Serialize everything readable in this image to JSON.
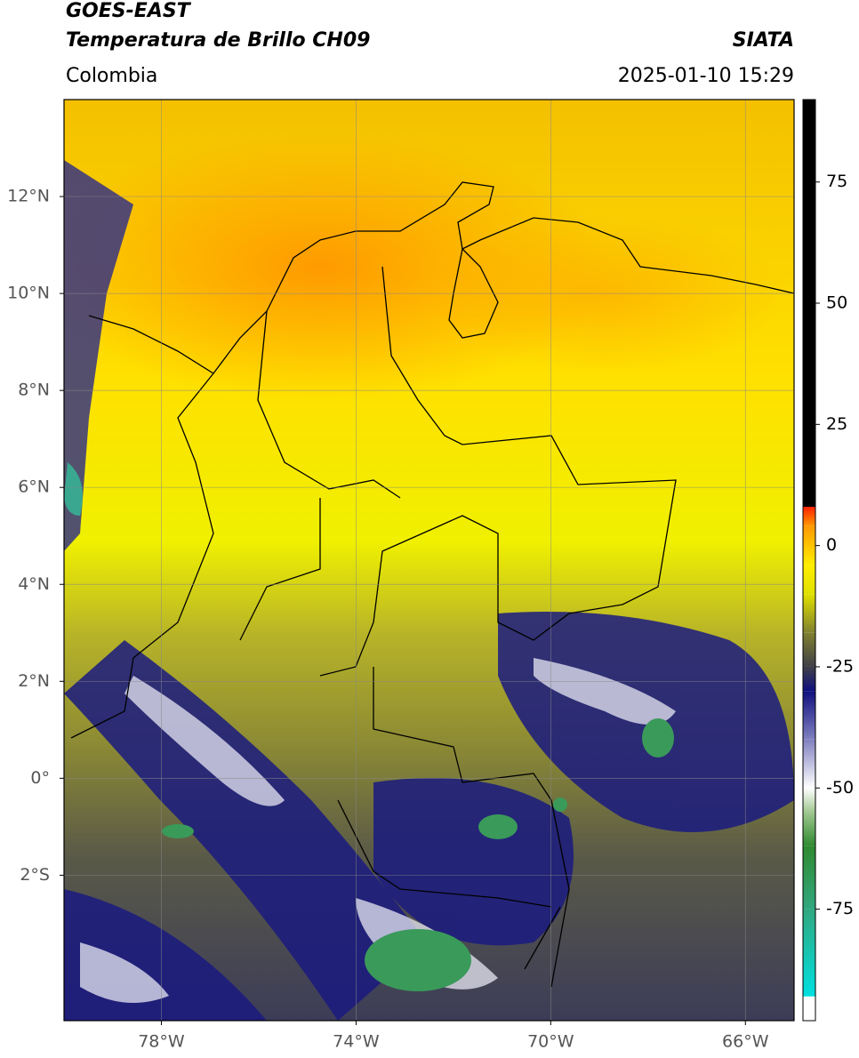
{
  "header": {
    "title": "GOES-EAST",
    "subtitle": "Temperatura de Brillo CH09",
    "source": "SIATA",
    "region": "Colombia",
    "datetime": "2025-01-10 15:29"
  },
  "map": {
    "xlim": [
      -80,
      -65
    ],
    "ylim": [
      -5,
      14
    ],
    "xticks": [
      {
        "value": -78,
        "label": "78°W"
      },
      {
        "value": -74,
        "label": "74°W"
      },
      {
        "value": -70,
        "label": "70°W"
      },
      {
        "value": -66,
        "label": "66°W"
      }
    ],
    "yticks": [
      {
        "value": 12,
        "label": "12°N"
      },
      {
        "value": 10,
        "label": "10°N"
      },
      {
        "value": 8,
        "label": "8°N"
      },
      {
        "value": 6,
        "label": "6°N"
      },
      {
        "value": 4,
        "label": "4°N"
      },
      {
        "value": 2,
        "label": "2°N"
      },
      {
        "value": 0,
        "label": "0°"
      },
      {
        "value": -2,
        "label": "2°S"
      }
    ],
    "grid": true
  },
  "colorbar": {
    "lim": [
      -98,
      92
    ],
    "ticks": [
      75,
      50,
      25,
      0,
      -25,
      -50,
      -75
    ],
    "stops": [
      {
        "value": -98,
        "color": "#ffffff"
      },
      {
        "value": -93,
        "color": "#ffffff"
      },
      {
        "value": -93,
        "color": "#00e0e0"
      },
      {
        "value": -75,
        "color": "#30a880"
      },
      {
        "value": -62,
        "color": "#2f8a30"
      },
      {
        "value": -55,
        "color": "#a0c890"
      },
      {
        "value": -50,
        "color": "#ffffff"
      },
      {
        "value": -40,
        "color": "#8080c0"
      },
      {
        "value": -30,
        "color": "#101080"
      },
      {
        "value": -25,
        "color": "#404048"
      },
      {
        "value": -18,
        "color": "#808030"
      },
      {
        "value": -10,
        "color": "#e0e000"
      },
      {
        "value": -4,
        "color": "#ffee00"
      },
      {
        "value": 4,
        "color": "#ff9900"
      },
      {
        "value": 8,
        "color": "#ff2000"
      },
      {
        "value": 8,
        "color": "#000000"
      },
      {
        "value": 92,
        "color": "#000000"
      }
    ]
  }
}
